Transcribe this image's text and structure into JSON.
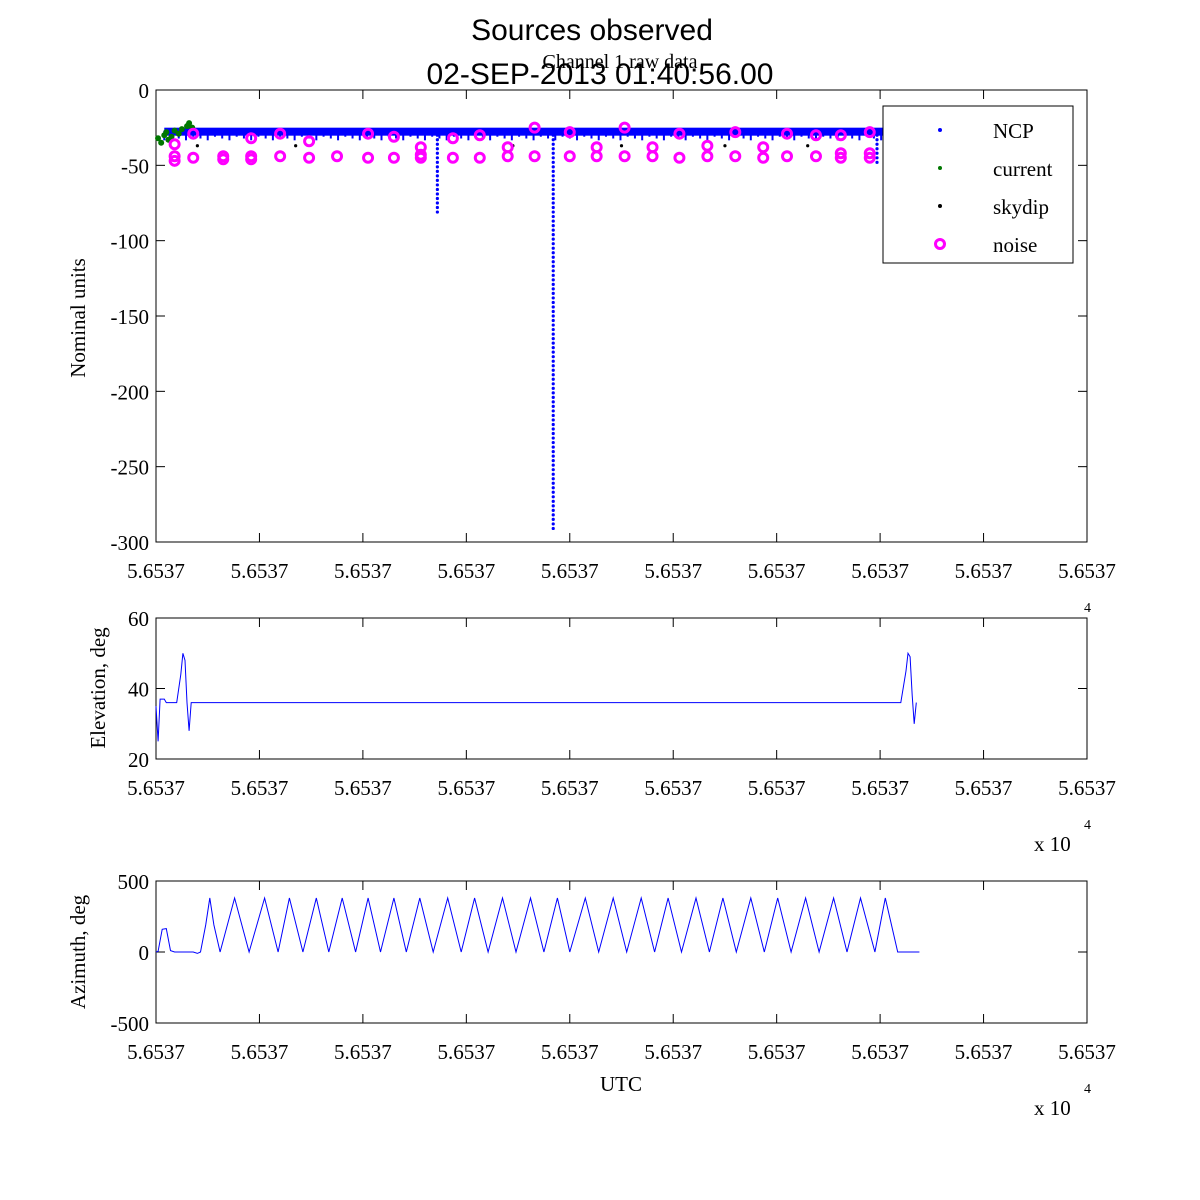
{
  "title_line1": "Sources observed",
  "title_line2": "02-SEP-2013 01:40:56.00",
  "chart_data": [
    {
      "type": "scatter",
      "id": "raw",
      "title": "Channel 1 raw data",
      "xlabel": "",
      "ylabel": "Nominal units",
      "xlim": [
        0,
        9
      ],
      "ylim": [
        -300,
        0
      ],
      "yticks": [
        0,
        -50,
        -100,
        -150,
        -200,
        -250,
        -300
      ],
      "xtick_labels": [
        "5.6537",
        "5.6537",
        "5.6537",
        "5.6537",
        "5.6537",
        "5.6537",
        "5.6537",
        "5.6537",
        "5.6537",
        "5.6537"
      ],
      "x_exponent": "",
      "baseline": -27,
      "series": [
        {
          "name": "NCP",
          "color": "#0000ff",
          "marker": "dot",
          "x_range": [
            0.08,
            7.9
          ],
          "y_level": -27,
          "dips": [
            {
              "x": 2.72,
              "y": -82
            },
            {
              "x": 3.84,
              "y": -293
            },
            {
              "x": 6.97,
              "y": -48
            }
          ]
        },
        {
          "name": "current",
          "color": "#007700",
          "marker": "dot",
          "points": [
            [
              0.02,
              -32
            ],
            [
              0.05,
              -35
            ],
            [
              0.08,
              -30
            ],
            [
              0.1,
              -28
            ],
            [
              0.12,
              -33
            ],
            [
              0.15,
              -31
            ],
            [
              0.18,
              -27
            ],
            [
              0.22,
              -29
            ],
            [
              0.25,
              -26
            ],
            [
              0.3,
              -24
            ],
            [
              0.32,
              -22
            ],
            [
              0.35,
              -25
            ]
          ]
        },
        {
          "name": "skydip",
          "color": "#000000",
          "marker": "dot",
          "points": [
            [
              0.4,
              -37
            ],
            [
              1.35,
              -37
            ],
            [
              3.45,
              -37
            ],
            [
              4.5,
              -37
            ],
            [
              5.5,
              -37
            ],
            [
              6.3,
              -37
            ],
            [
              7.05,
              -37
            ]
          ]
        },
        {
          "name": "noise",
          "color": "#ff00ff",
          "marker": "circle",
          "points": [
            [
              0.18,
              -47
            ],
            [
              0.18,
              -44
            ],
            [
              0.18,
              -36
            ],
            [
              0.36,
              -45
            ],
            [
              0.36,
              -29
            ],
            [
              0.65,
              -46
            ],
            [
              0.65,
              -44
            ],
            [
              0.92,
              -46
            ],
            [
              0.92,
              -44
            ],
            [
              0.92,
              -32
            ],
            [
              1.2,
              -44
            ],
            [
              1.2,
              -29
            ],
            [
              1.48,
              -45
            ],
            [
              1.48,
              -34
            ],
            [
              1.75,
              -44
            ],
            [
              2.05,
              -45
            ],
            [
              2.05,
              -29
            ],
            [
              2.3,
              -45
            ],
            [
              2.3,
              -31
            ],
            [
              2.56,
              -45
            ],
            [
              2.56,
              -43
            ],
            [
              2.56,
              -38
            ],
            [
              2.87,
              -45
            ],
            [
              2.87,
              -32
            ],
            [
              3.13,
              -45
            ],
            [
              3.13,
              -30
            ],
            [
              3.4,
              -44
            ],
            [
              3.4,
              -38
            ],
            [
              3.66,
              -44
            ],
            [
              3.66,
              -25
            ],
            [
              4.0,
              -44
            ],
            [
              4.0,
              -28
            ],
            [
              4.26,
              -44
            ],
            [
              4.26,
              -38
            ],
            [
              4.53,
              -44
            ],
            [
              4.53,
              -25
            ],
            [
              4.8,
              -44
            ],
            [
              4.8,
              -38
            ],
            [
              5.06,
              -45
            ],
            [
              5.06,
              -29
            ],
            [
              5.33,
              -44
            ],
            [
              5.33,
              -37
            ],
            [
              5.6,
              -44
            ],
            [
              5.6,
              -28
            ],
            [
              5.87,
              -45
            ],
            [
              5.87,
              -38
            ],
            [
              6.1,
              -44
            ],
            [
              6.1,
              -29
            ],
            [
              6.38,
              -44
            ],
            [
              6.38,
              -30
            ],
            [
              6.62,
              -45
            ],
            [
              6.62,
              -42
            ],
            [
              6.62,
              -30
            ],
            [
              6.9,
              -45
            ],
            [
              6.9,
              -42
            ],
            [
              6.9,
              -28
            ]
          ]
        }
      ],
      "legend": {
        "position": "top-right",
        "entries": [
          "NCP",
          "current",
          "skydip",
          "noise"
        ]
      }
    },
    {
      "type": "line",
      "id": "elevation",
      "title": "",
      "xlabel": "",
      "ylabel": "Elevation, deg",
      "xlim": [
        0,
        9
      ],
      "ylim": [
        20,
        60
      ],
      "yticks": [
        60,
        40,
        20
      ],
      "xtick_labels": [
        "5.6537",
        "5.6537",
        "5.6537",
        "5.6537",
        "5.6537",
        "5.6537",
        "5.6537",
        "5.6537",
        "5.6537",
        "5.6537"
      ],
      "x_exponent_label": "x 10",
      "x_exponent_power": "4",
      "series": [
        {
          "name": "elevation",
          "color": "#0000ff",
          "points": [
            [
              0,
              35
            ],
            [
              0.02,
              25
            ],
            [
              0.04,
              37
            ],
            [
              0.08,
              37
            ],
            [
              0.1,
              36
            ],
            [
              0.2,
              36
            ],
            [
              0.24,
              44
            ],
            [
              0.26,
              50
            ],
            [
              0.28,
              48
            ],
            [
              0.3,
              36
            ],
            [
              0.32,
              28
            ],
            [
              0.34,
              36
            ],
            [
              0.5,
              36
            ],
            [
              7.2,
              36
            ],
            [
              7.25,
              45
            ],
            [
              7.27,
              50
            ],
            [
              7.29,
              49
            ],
            [
              7.31,
              38
            ],
            [
              7.33,
              30
            ],
            [
              7.35,
              36
            ]
          ]
        }
      ]
    },
    {
      "type": "line",
      "id": "azimuth",
      "title": "",
      "xlabel": "UTC",
      "ylabel": "Azimuth, deg",
      "xlim": [
        0,
        9
      ],
      "ylim": [
        -500,
        500
      ],
      "yticks": [
        500,
        0,
        -500
      ],
      "xtick_labels": [
        "5.6537",
        "5.6537",
        "5.6537",
        "5.6537",
        "5.6537",
        "5.6537",
        "5.6537",
        "5.6537",
        "5.6537",
        "5.6537"
      ],
      "x_exponent_label": "x 10",
      "x_exponent_power": "4",
      "series": [
        {
          "name": "azimuth",
          "color": "#0000ff",
          "points": [
            [
              0,
              0
            ],
            [
              0.02,
              5
            ],
            [
              0.06,
              160
            ],
            [
              0.1,
              165
            ],
            [
              0.14,
              10
            ],
            [
              0.18,
              0
            ],
            [
              0.36,
              0
            ],
            [
              0.4,
              -10
            ],
            [
              0.43,
              0
            ],
            [
              0.48,
              190
            ],
            [
              0.52,
              380
            ],
            [
              0.56,
              190
            ],
            [
              0.62,
              0
            ],
            [
              0.76,
              380
            ],
            [
              0.9,
              0
            ],
            [
              1.05,
              380
            ],
            [
              1.18,
              0
            ],
            [
              1.29,
              380
            ],
            [
              1.42,
              0
            ],
            [
              1.55,
              380
            ],
            [
              1.67,
              0
            ],
            [
              1.8,
              380
            ],
            [
              1.93,
              0
            ],
            [
              2.05,
              380
            ],
            [
              2.17,
              0
            ],
            [
              2.3,
              380
            ],
            [
              2.42,
              0
            ],
            [
              2.55,
              380
            ],
            [
              2.68,
              0
            ],
            [
              2.82,
              380
            ],
            [
              2.95,
              0
            ],
            [
              3.08,
              380
            ],
            [
              3.21,
              0
            ],
            [
              3.35,
              380
            ],
            [
              3.48,
              0
            ],
            [
              3.62,
              380
            ],
            [
              3.75,
              0
            ],
            [
              3.88,
              380
            ],
            [
              4.0,
              0
            ],
            [
              4.15,
              380
            ],
            [
              4.28,
              0
            ],
            [
              4.42,
              380
            ],
            [
              4.55,
              0
            ],
            [
              4.69,
              380
            ],
            [
              4.82,
              0
            ],
            [
              4.95,
              380
            ],
            [
              5.08,
              0
            ],
            [
              5.22,
              380
            ],
            [
              5.35,
              0
            ],
            [
              5.48,
              380
            ],
            [
              5.61,
              0
            ],
            [
              5.75,
              380
            ],
            [
              5.88,
              0
            ],
            [
              6.01,
              380
            ],
            [
              6.14,
              0
            ],
            [
              6.28,
              380
            ],
            [
              6.41,
              0
            ],
            [
              6.55,
              380
            ],
            [
              6.68,
              0
            ],
            [
              6.81,
              380
            ],
            [
              6.95,
              0
            ],
            [
              7.05,
              380
            ],
            [
              7.17,
              0
            ],
            [
              7.38,
              0
            ]
          ]
        }
      ]
    }
  ]
}
